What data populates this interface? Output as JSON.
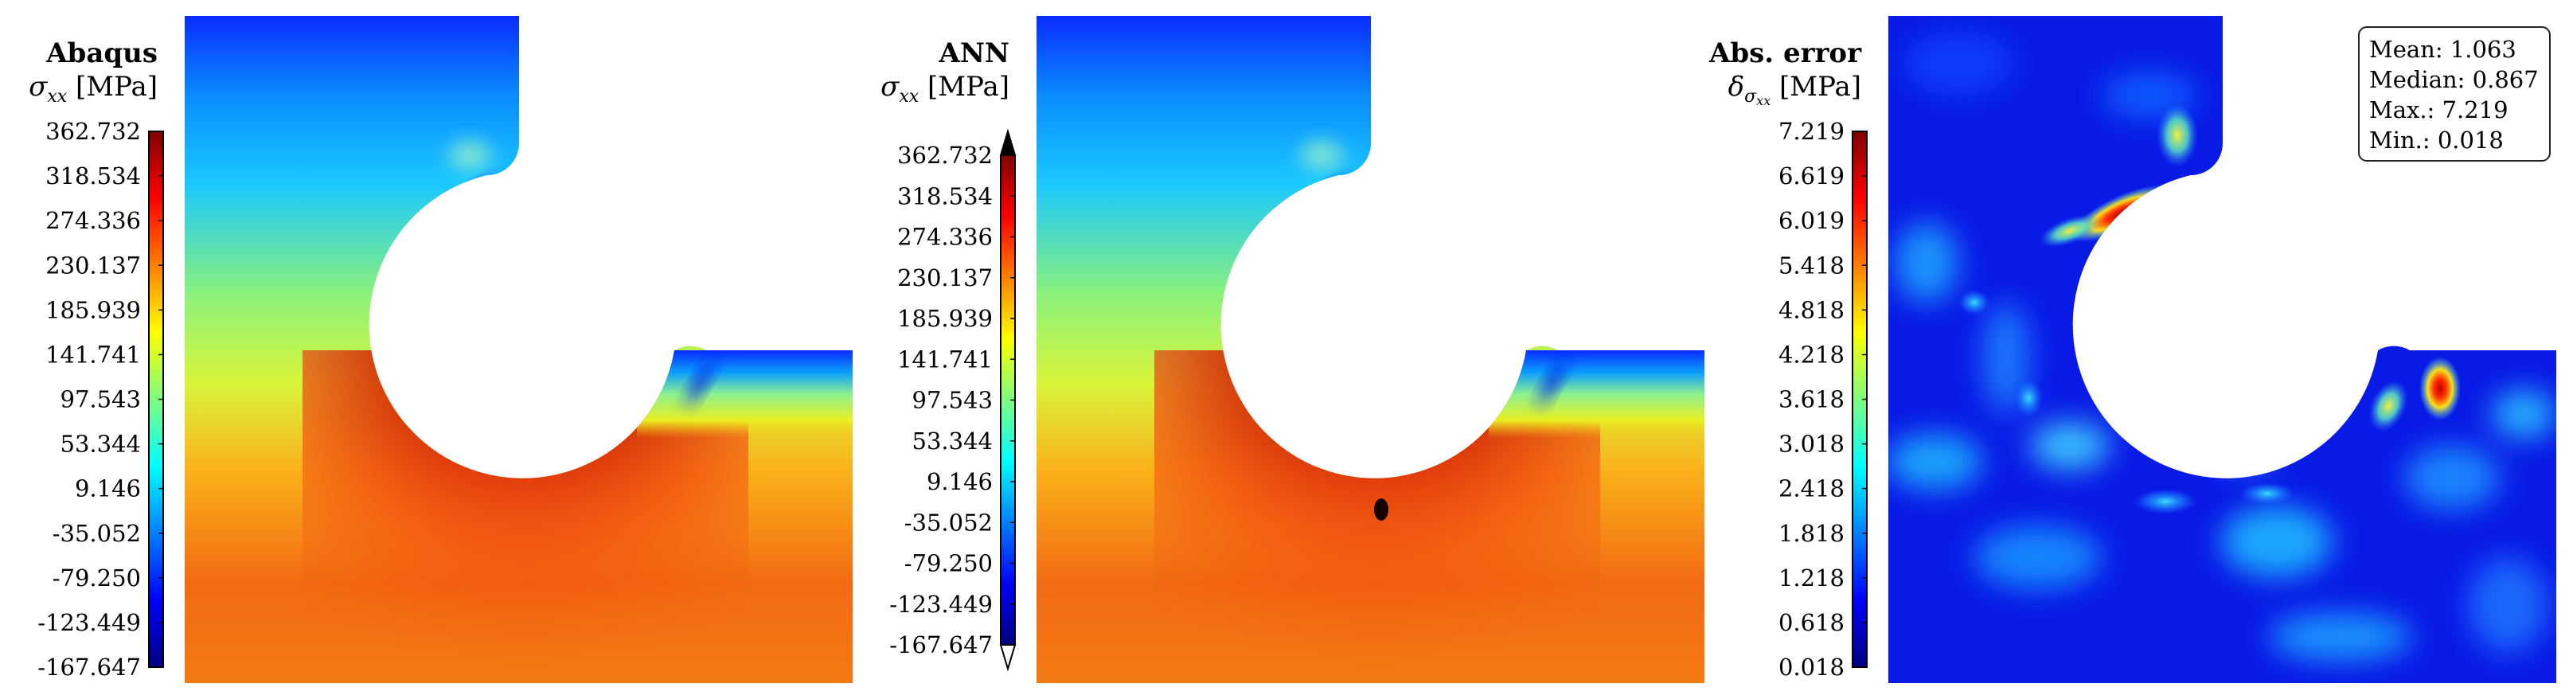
{
  "chart_data": [
    {
      "type": "heatmap",
      "title": "Abaqus",
      "quantity": "σxx",
      "unit": "[MPa]",
      "colorbar": {
        "ticks": [
          "362.732",
          "318.534",
          "274.336",
          "230.137",
          "185.939",
          "141.741",
          "97.543",
          "53.344",
          "9.146",
          "-35.052",
          "-79.250",
          "-123.449",
          "-167.647"
        ],
        "range": [
          -167.647,
          362.732
        ],
        "arrows": false
      }
    },
    {
      "type": "heatmap",
      "title": "ANN",
      "quantity": "σxx",
      "unit": "[MPa]",
      "colorbar": {
        "ticks": [
          "362.732",
          "318.534",
          "274.336",
          "230.137",
          "185.939",
          "141.741",
          "97.543",
          "53.344",
          "9.146",
          "-35.052",
          "-79.250",
          "-123.449",
          "-167.647"
        ],
        "range": [
          -167.647,
          362.732
        ],
        "arrows": true
      }
    },
    {
      "type": "heatmap",
      "title": "Abs. error",
      "quantity": "δσxx",
      "unit": "[MPa]",
      "colorbar": {
        "ticks": [
          "7.219",
          "6.619",
          "6.019",
          "5.418",
          "4.818",
          "4.218",
          "3.618",
          "3.018",
          "2.418",
          "1.818",
          "1.218",
          "0.618",
          "0.018"
        ],
        "range": [
          0.018,
          7.219
        ],
        "arrows": false
      },
      "stats": [
        "Mean: 1.063",
        "Median: 0.867",
        "Max.: 7.219",
        "Min.: 0.018"
      ]
    }
  ],
  "colormap": [
    "#00007f",
    "#0000ff",
    "#007fff",
    "#00ffff",
    "#7fff7f",
    "#ffff00",
    "#ff7f00",
    "#ff0000",
    "#7f0000"
  ]
}
